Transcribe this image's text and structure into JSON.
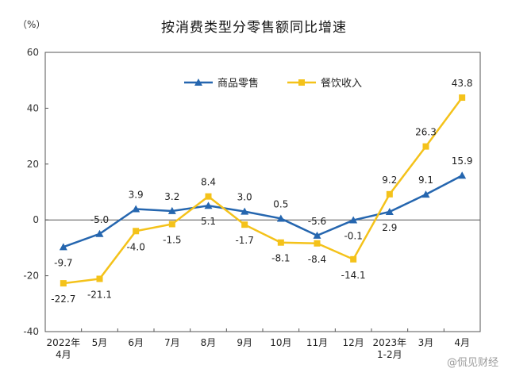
{
  "chart_data": {
    "type": "line",
    "title": "按消费类型分零售额同比增速",
    "y_unit": "（%）",
    "ylim": [
      -40,
      60
    ],
    "yticks": [
      "60",
      "40",
      "20",
      "0",
      "-20",
      "-40"
    ],
    "grid": false,
    "legend_position": "top-center",
    "categories": [
      [
        "2022年",
        "4月"
      ],
      [
        "5月"
      ],
      [
        "6月"
      ],
      [
        "7月"
      ],
      [
        "8月"
      ],
      [
        "9月"
      ],
      [
        "10月"
      ],
      [
        "11月"
      ],
      [
        "12月"
      ],
      [
        "2023年",
        "1-2月"
      ],
      [
        "3月"
      ],
      [
        "4月"
      ]
    ],
    "series": [
      {
        "name": "商品零售",
        "color": "#2566AF",
        "marker": "triangle",
        "values": [
          -9.7,
          -5.0,
          3.9,
          3.2,
          5.1,
          3.0,
          0.5,
          -5.6,
          -0.1,
          2.9,
          9.1,
          15.9
        ],
        "labels": [
          "-9.7",
          "-5.0",
          "3.9",
          "3.2",
          "5.1",
          "3.0",
          "0.5",
          "-5.6",
          "-0.1",
          "2.9",
          "9.1",
          "15.9"
        ]
      },
      {
        "name": "餐饮收入",
        "color": "#F4C21A",
        "marker": "square",
        "values": [
          -22.7,
          -21.1,
          -4.0,
          -1.5,
          8.4,
          -1.7,
          -8.1,
          -8.4,
          -14.1,
          9.2,
          26.3,
          43.8
        ],
        "labels": [
          "-22.7",
          "-21.1",
          "-4.0",
          "-1.5",
          "8.4",
          "-1.7",
          "-8.1",
          "-8.4",
          "-14.1",
          "9.2",
          "26.3",
          "43.8"
        ]
      }
    ]
  },
  "watermark": "@侃见财经"
}
